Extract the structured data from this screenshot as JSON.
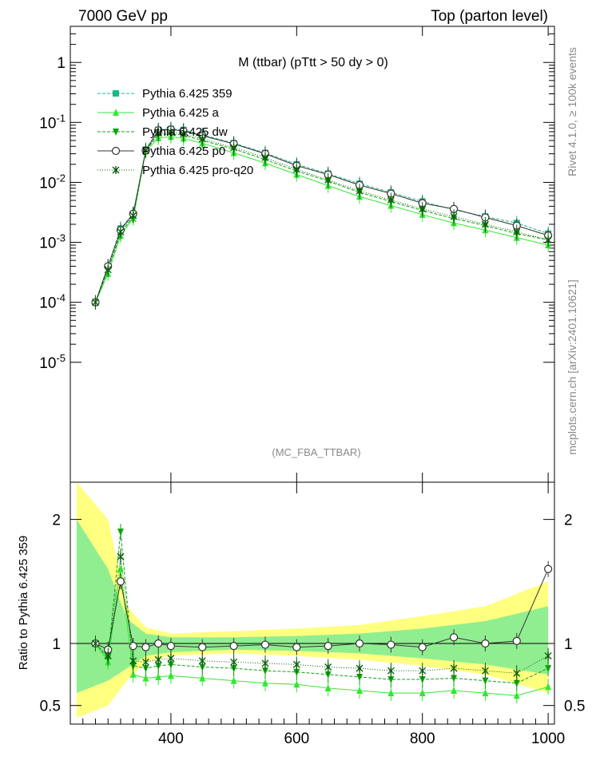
{
  "header": {
    "left": "7000 GeV pp",
    "right": "Top (parton level)"
  },
  "side_labels": {
    "rivet": "Rivet 4.1.0, ≥ 100k events",
    "mcplots": "mcplots.cern.ch [arXiv:2401.10621]"
  },
  "chart_data": [
    {
      "type": "line",
      "panel": "main",
      "title": "M (ttbar) (pTtt > 50 dy > 0)",
      "watermark": "(MC_FBA_TTBAR)",
      "yscale": "log",
      "xlim": [
        240,
        1010
      ],
      "ylim": [
        1e-07,
        4
      ],
      "yticks": [
        {
          "value": 1,
          "label": "1"
        },
        {
          "value": 0.1,
          "label": "10^-1"
        },
        {
          "value": 0.01,
          "label": "10^-2"
        },
        {
          "value": 0.001,
          "label": "10^-3"
        },
        {
          "value": 0.0001,
          "label": "10^-4"
        },
        {
          "value": 1e-05,
          "label": "10^-5"
        }
      ],
      "legend_position": "top-left",
      "series": [
        {
          "name": "Pythia 6.425 359",
          "color": "#19b98a",
          "dash": "4,2",
          "marker": "square",
          "x": [
            280,
            300,
            320,
            340,
            360,
            380,
            400,
            420,
            450,
            500,
            550,
            600,
            650,
            700,
            750,
            800,
            850,
            900,
            950,
            1000
          ],
          "y": [
            0.0001,
            0.0004,
            0.0017,
            0.003,
            0.035,
            0.075,
            0.078,
            0.075,
            0.062,
            0.045,
            0.031,
            0.02,
            0.014,
            0.0095,
            0.0068,
            0.0048,
            0.0035,
            0.0027,
            0.0021,
            0.0014
          ]
        },
        {
          "name": "Pythia 6.425 a",
          "color": "#33e633",
          "dash": "",
          "marker": "triangle-up",
          "x": [
            280,
            300,
            320,
            340,
            360,
            380,
            400,
            420,
            450,
            500,
            550,
            600,
            650,
            700,
            750,
            800,
            850,
            900,
            950,
            1000
          ],
          "y": [
            0.0001,
            0.0003,
            0.0013,
            0.0025,
            0.033,
            0.055,
            0.058,
            0.054,
            0.045,
            0.031,
            0.021,
            0.0135,
            0.0088,
            0.0058,
            0.0041,
            0.0029,
            0.0021,
            0.0016,
            0.0012,
            0.0009
          ]
        },
        {
          "name": "Pythia 6.425 dw",
          "color": "#0da30d",
          "dash": "4,2",
          "marker": "triangle-down",
          "x": [
            280,
            300,
            320,
            340,
            360,
            380,
            400,
            420,
            450,
            500,
            550,
            600,
            650,
            700,
            750,
            800,
            850,
            900,
            950,
            1000
          ],
          "y": [
            0.0001,
            0.00035,
            0.0014,
            0.0027,
            0.034,
            0.062,
            0.065,
            0.061,
            0.05,
            0.036,
            0.024,
            0.0155,
            0.0105,
            0.0068,
            0.0048,
            0.0034,
            0.0025,
            0.0019,
            0.0014,
            0.0011
          ]
        },
        {
          "name": "Pythia 6.425 p0",
          "color": "#333333",
          "dash": "",
          "marker": "circle",
          "x": [
            280,
            300,
            320,
            340,
            360,
            380,
            400,
            420,
            450,
            500,
            550,
            600,
            650,
            700,
            750,
            800,
            850,
            900,
            950,
            1000
          ],
          "y": [
            0.0001,
            0.0004,
            0.0016,
            0.003,
            0.034,
            0.074,
            0.076,
            0.072,
            0.06,
            0.044,
            0.03,
            0.019,
            0.0135,
            0.009,
            0.0065,
            0.0045,
            0.0036,
            0.0026,
            0.0019,
            0.0013
          ]
        },
        {
          "name": "Pythia 6.425 pro-q20",
          "color": "#0b5e0b",
          "dash": "1,2",
          "marker": "star",
          "x": [
            280,
            300,
            320,
            340,
            360,
            380,
            400,
            420,
            450,
            500,
            550,
            600,
            650,
            700,
            750,
            800,
            850,
            900,
            950,
            1000
          ],
          "y": [
            0.0001,
            0.00035,
            0.0015,
            0.0028,
            0.034,
            0.066,
            0.069,
            0.064,
            0.053,
            0.038,
            0.026,
            0.0165,
            0.011,
            0.0072,
            0.0051,
            0.0036,
            0.0027,
            0.002,
            0.0015,
            0.0011
          ]
        }
      ]
    },
    {
      "type": "line",
      "panel": "ratio",
      "ylabel": "Ratio to Pythia 6.425 359",
      "xlim": [
        240,
        1010
      ],
      "ylim": [
        0.35,
        2.3
      ],
      "xticks": [
        400,
        600,
        800,
        1000
      ],
      "yticks": [
        0.5,
        1,
        2
      ],
      "reference": 1,
      "bands": [
        {
          "color": "#ffff80",
          "x": [
            250,
            300,
            330,
            360,
            400,
            500,
            600,
            700,
            800,
            900,
            1000
          ],
          "lo": [
            0.4,
            0.5,
            0.7,
            0.85,
            0.9,
            0.92,
            0.9,
            0.87,
            0.82,
            0.75,
            0.6
          ],
          "hi": [
            2.3,
            2.0,
            1.3,
            1.13,
            1.08,
            1.1,
            1.12,
            1.15,
            1.22,
            1.3,
            1.5
          ]
        },
        {
          "color": "#90ee90",
          "x": [
            250,
            300,
            330,
            360,
            400,
            500,
            600,
            700,
            800,
            900,
            1000
          ],
          "lo": [
            0.6,
            0.7,
            0.8,
            0.9,
            0.93,
            0.95,
            0.94,
            0.92,
            0.88,
            0.83,
            0.75
          ],
          "hi": [
            2.0,
            1.6,
            1.2,
            1.08,
            1.05,
            1.05,
            1.06,
            1.08,
            1.12,
            1.18,
            1.3
          ]
        }
      ],
      "series": [
        {
          "name": "Pythia 6.425 a",
          "color": "#33e633",
          "dash": "",
          "marker": "triangle-up",
          "x": [
            280,
            300,
            320,
            340,
            360,
            380,
            400,
            450,
            500,
            550,
            600,
            650,
            700,
            750,
            800,
            850,
            900,
            950,
            1000
          ],
          "y": [
            1,
            0.85,
            1.6,
            0.75,
            0.72,
            0.73,
            0.74,
            0.72,
            0.7,
            0.68,
            0.67,
            0.64,
            0.62,
            0.6,
            0.6,
            0.62,
            0.6,
            0.58,
            0.65
          ]
        },
        {
          "name": "Pythia 6.425 dw",
          "color": "#0da30d",
          "dash": "4,2",
          "marker": "triangle-down",
          "x": [
            280,
            300,
            320,
            340,
            360,
            380,
            400,
            450,
            500,
            550,
            600,
            650,
            700,
            750,
            800,
            850,
            900,
            950,
            1000
          ],
          "y": [
            1,
            0.88,
            1.9,
            0.82,
            0.8,
            0.82,
            0.83,
            0.81,
            0.8,
            0.78,
            0.77,
            0.75,
            0.73,
            0.71,
            0.71,
            0.72,
            0.7,
            0.68,
            0.8
          ]
        },
        {
          "name": "Pythia 6.425 p0",
          "color": "#333333",
          "dash": "",
          "marker": "circle",
          "x": [
            280,
            300,
            320,
            340,
            360,
            380,
            400,
            450,
            500,
            550,
            600,
            650,
            700,
            750,
            800,
            850,
            900,
            950,
            1000
          ],
          "y": [
            1,
            0.95,
            1.5,
            0.98,
            0.97,
            1.0,
            0.98,
            0.97,
            0.98,
            0.99,
            0.97,
            0.98,
            1.0,
            0.99,
            0.97,
            1.05,
            1.0,
            1.02,
            1.6
          ]
        },
        {
          "name": "Pythia 6.425 pro-q20",
          "color": "#0b5e0b",
          "dash": "1,2",
          "marker": "star",
          "x": [
            280,
            300,
            320,
            340,
            360,
            380,
            400,
            450,
            500,
            550,
            600,
            650,
            700,
            750,
            800,
            850,
            900,
            950,
            1000
          ],
          "y": [
            1,
            0.9,
            1.7,
            0.86,
            0.85,
            0.87,
            0.88,
            0.86,
            0.85,
            0.84,
            0.83,
            0.81,
            0.8,
            0.78,
            0.78,
            0.8,
            0.78,
            0.76,
            0.9
          ]
        }
      ]
    }
  ]
}
